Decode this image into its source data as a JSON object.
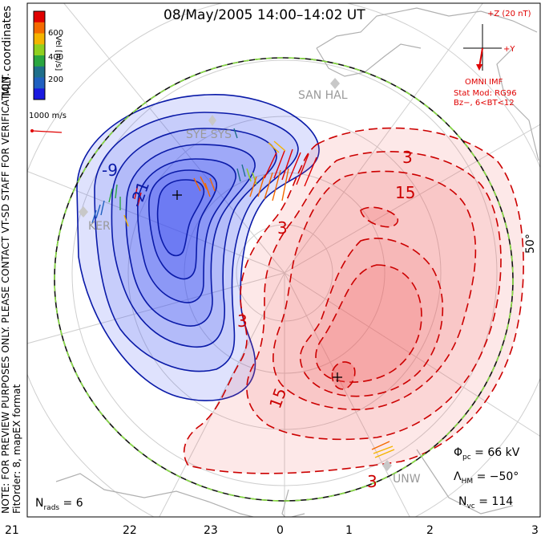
{
  "title": "08/May/2005 14:00–14:02 UT",
  "notes": {
    "preview_line1": "NOTE: FOR PREVIEW PURPOSES ONLY. PLEASE CONTACT VT-SD STAFF FOR VERIFICATION.",
    "fitorder_line": "FitOrder: 8, mapEX format",
    "mlt_coordinates": "MLT coordinates"
  },
  "velocity_scale": {
    "label": "Vel [m/s]",
    "ticks": [
      "600",
      "400",
      "200"
    ],
    "colors": [
      "#e00000",
      "#f46a00",
      "#f4b400",
      "#90d020",
      "#2aa640",
      "#1f6f8a",
      "#2060c0",
      "#1a1ae0"
    ]
  },
  "vector_scale": {
    "label": "1000 m/s",
    "color": "#e00000"
  },
  "imf": {
    "top_label": "+Z (20 nT)",
    "right_label": "+Y",
    "caption": "OMNI IMF",
    "model_line1": "Stat Mod: RG96",
    "model_line2": "Bz−, 6<BT<12",
    "color": "#e00000"
  },
  "stats": {
    "phi_pc": "66 kV",
    "lambda_hm": "−50°",
    "n_vc": "114",
    "n_rads": "6"
  },
  "mlt_axis": [
    "21",
    "22",
    "23",
    "0",
    "1",
    "2",
    "3"
  ],
  "lat_label": "50°",
  "stations": [
    "SYE SYS",
    "KER",
    "SAN HAL",
    "UNW"
  ],
  "contours": {
    "negative_labels": [
      "-9",
      "-21"
    ],
    "positive_labels": [
      "3",
      "15",
      "3",
      "15",
      "3",
      "3"
    ],
    "negative_color": "#0a1aa8",
    "positive_color": "#cc0000",
    "negative_fill": "#3a4cf0",
    "positive_fill": "#f05a5a"
  },
  "boundary_colors": [
    "#111111",
    "#88dd44"
  ]
}
